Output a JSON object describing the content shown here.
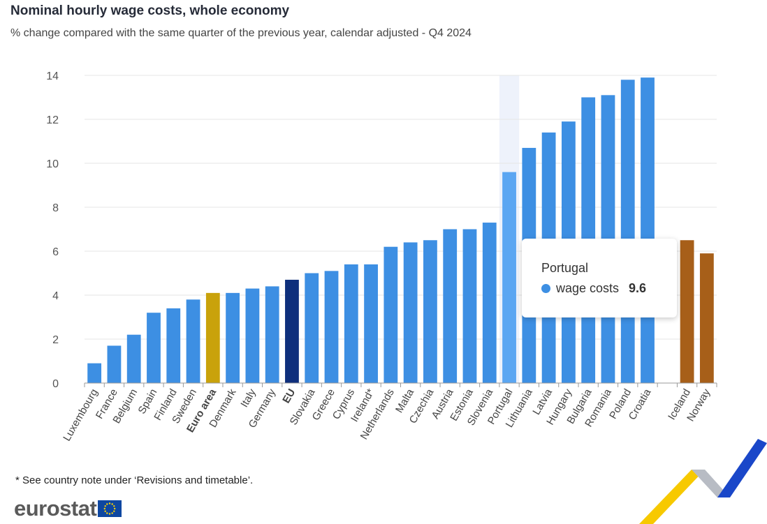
{
  "header": {
    "title": "Nominal hourly wage costs, whole economy",
    "subtitle": "% change compared with the same quarter of the previous year, calendar adjusted - Q4 2024"
  },
  "chart_data": {
    "type": "bar",
    "title": "Nominal hourly wage costs, whole economy",
    "subtitle": "% change compared with the same quarter of the previous year, calendar adjusted - Q4 2024",
    "ylim": [
      0,
      14
    ],
    "yticks": [
      0,
      2,
      4,
      6,
      8,
      10,
      12,
      14
    ],
    "grid": true,
    "series": [
      {
        "name": "wage costs"
      }
    ],
    "bars": [
      {
        "label": "Luxembourg",
        "value": 0.9,
        "color": "#3d8fe3"
      },
      {
        "label": "France",
        "value": 1.7,
        "color": "#3d8fe3"
      },
      {
        "label": "Belgium",
        "value": 2.2,
        "color": "#3d8fe3"
      },
      {
        "label": "Spain",
        "value": 3.2,
        "color": "#3d8fe3"
      },
      {
        "label": "Finland",
        "value": 3.4,
        "color": "#3d8fe3"
      },
      {
        "label": "Sweden",
        "value": 3.8,
        "color": "#3d8fe3"
      },
      {
        "label": "Euro area",
        "value": 4.1,
        "color": "#c9a20b",
        "bold": true
      },
      {
        "label": "Denmark",
        "value": 4.1,
        "color": "#3d8fe3"
      },
      {
        "label": "Italy",
        "value": 4.3,
        "color": "#3d8fe3"
      },
      {
        "label": "Germany",
        "value": 4.4,
        "color": "#3d8fe3"
      },
      {
        "label": "EU",
        "value": 4.7,
        "color": "#0e2f7c",
        "bold": true
      },
      {
        "label": "Slovakia",
        "value": 5.0,
        "color": "#3d8fe3"
      },
      {
        "label": "Greece",
        "value": 5.1,
        "color": "#3d8fe3"
      },
      {
        "label": "Cyprus",
        "value": 5.4,
        "color": "#3d8fe3"
      },
      {
        "label": "Ireland*",
        "value": 5.4,
        "color": "#3d8fe3"
      },
      {
        "label": "Netherlands",
        "value": 6.2,
        "color": "#3d8fe3"
      },
      {
        "label": "Malta",
        "value": 6.4,
        "color": "#3d8fe3"
      },
      {
        "label": "Czechia",
        "value": 6.5,
        "color": "#3d8fe3"
      },
      {
        "label": "Austria",
        "value": 7.0,
        "color": "#3d8fe3"
      },
      {
        "label": "Estonia",
        "value": 7.0,
        "color": "#3d8fe3"
      },
      {
        "label": "Slovenia",
        "value": 7.3,
        "color": "#3d8fe3"
      },
      {
        "label": "Portugal",
        "value": 9.6,
        "color": "#5ba6f2",
        "highlight": true
      },
      {
        "label": "Lithuania",
        "value": 10.7,
        "color": "#3d8fe3"
      },
      {
        "label": "Latvia",
        "value": 11.4,
        "color": "#3d8fe3"
      },
      {
        "label": "Hungary",
        "value": 11.9,
        "color": "#3d8fe3"
      },
      {
        "label": "Bulgaria",
        "value": 13.0,
        "color": "#3d8fe3"
      },
      {
        "label": "Romania",
        "value": 13.1,
        "color": "#3d8fe3"
      },
      {
        "label": "Poland",
        "value": 13.8,
        "color": "#3d8fe3"
      },
      {
        "label": "Croatia",
        "value": 13.9,
        "color": "#3d8fe3"
      },
      {
        "label": "",
        "value": null,
        "color": "#ffffff",
        "gap": true
      },
      {
        "label": "Iceland",
        "value": 6.5,
        "color": "#a75f19"
      },
      {
        "label": "Norway",
        "value": 5.9,
        "color": "#a75f19"
      }
    ]
  },
  "tooltip": {
    "country": "Portugal",
    "series_label": "wage costs",
    "value": "9.6"
  },
  "footnote": "* See country note under ‘Revisions and timetable’.",
  "brand": {
    "logo_text": "eurostat"
  }
}
